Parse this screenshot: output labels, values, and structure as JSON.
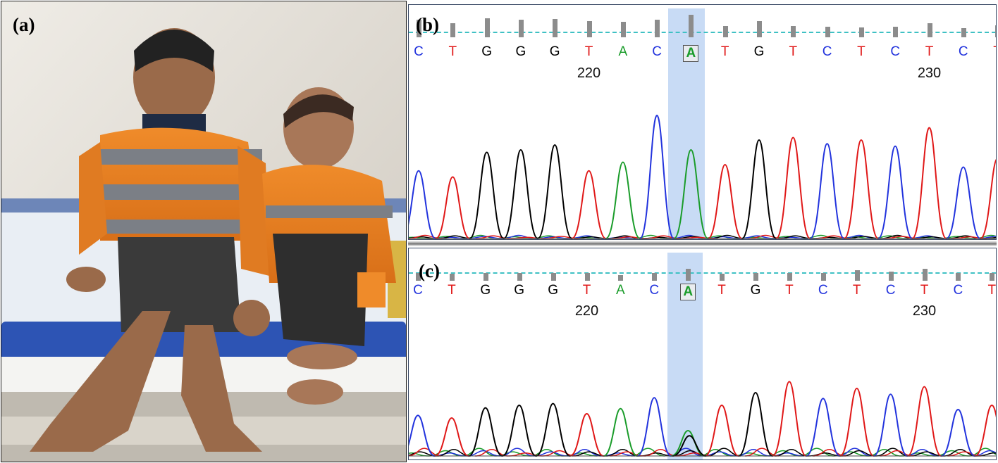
{
  "panels": {
    "a": {
      "label": "(a)"
    },
    "b": {
      "label": "(b)"
    },
    "c": {
      "label": "(c)"
    }
  },
  "sequence": {
    "bases": [
      "C",
      "T",
      "G",
      "G",
      "G",
      "T",
      "A",
      "C",
      "A",
      "T",
      "G",
      "T",
      "C",
      "T",
      "C",
      "T",
      "C",
      "T"
    ],
    "selected_index": 8,
    "position_labels": [
      {
        "text": "220",
        "base_index": 5
      },
      {
        "text": "230",
        "base_index": 15
      }
    ]
  },
  "colors": {
    "A": "#1a9c2a",
    "C": "#2233dd",
    "G": "#000000",
    "T": "#e01818",
    "highlight": "#7daae6",
    "quality_line": "#3fc1c4",
    "quality_bar": "#8c8c8c"
  },
  "traces": {
    "b": {
      "peak_heights": [
        0.55,
        0.5,
        0.7,
        0.72,
        0.76,
        0.55,
        0.62,
        1.0,
        0.72,
        0.6,
        0.8,
        0.82,
        0.77,
        0.8,
        0.75,
        0.9,
        0.58,
        0.65
      ],
      "noise": 0.02
    },
    "c": {
      "peak_heights": [
        0.48,
        0.45,
        0.57,
        0.6,
        0.62,
        0.5,
        0.56,
        0.69,
        0.3,
        0.6,
        0.75,
        0.88,
        0.68,
        0.8,
        0.73,
        0.82,
        0.55,
        0.6
      ],
      "noise": 0.07,
      "secondary_at_selected": {
        "base": "G",
        "height": 0.24
      }
    }
  },
  "quality": {
    "b": [
      0.7,
      0.55,
      0.75,
      0.7,
      0.72,
      0.65,
      0.62,
      0.7,
      0.9,
      0.45,
      0.65,
      0.45,
      0.42,
      0.4,
      0.42,
      0.55,
      0.35,
      0.48
    ],
    "c": [
      0.4,
      0.35,
      0.4,
      0.4,
      0.4,
      0.38,
      0.3,
      0.38,
      0.6,
      0.35,
      0.4,
      0.4,
      0.4,
      0.55,
      0.45,
      0.6,
      0.4,
      0.4
    ]
  }
}
